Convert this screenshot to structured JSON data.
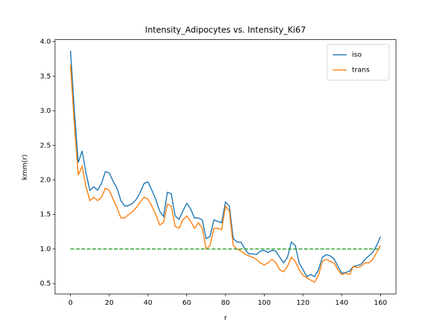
{
  "chart_data": {
    "type": "line",
    "title": "Intensity_Adipocytes vs. Intensity_Ki67",
    "x_label": "r",
    "y_label": "kmm(r)",
    "x": [
      0,
      2,
      4,
      6,
      8,
      10,
      12,
      14,
      16,
      18,
      20,
      22,
      24,
      26,
      28,
      30,
      32,
      34,
      36,
      38,
      40,
      42,
      44,
      46,
      48,
      50,
      52,
      54,
      56,
      58,
      60,
      62,
      64,
      66,
      68,
      70,
      72,
      74,
      76,
      78,
      80,
      82,
      84,
      86,
      88,
      90,
      92,
      94,
      96,
      98,
      100,
      102,
      104,
      106,
      108,
      110,
      112,
      114,
      116,
      118,
      120,
      122,
      124,
      126,
      128,
      130,
      132,
      134,
      136,
      138,
      140,
      142,
      144,
      146,
      148,
      150,
      152,
      154,
      156,
      158,
      160
    ],
    "series": [
      {
        "name": "iso",
        "color": "#1f77b4",
        "values": [
          3.87,
          3.0,
          2.25,
          2.42,
          2.1,
          1.85,
          1.9,
          1.85,
          1.95,
          2.12,
          2.1,
          1.98,
          1.88,
          1.7,
          1.62,
          1.63,
          1.66,
          1.72,
          1.82,
          1.95,
          1.97,
          1.85,
          1.72,
          1.55,
          1.47,
          1.82,
          1.8,
          1.48,
          1.43,
          1.55,
          1.66,
          1.58,
          1.45,
          1.45,
          1.42,
          1.15,
          1.18,
          1.42,
          1.4,
          1.38,
          1.68,
          1.62,
          1.15,
          1.1,
          1.1,
          1.0,
          0.93,
          0.93,
          0.92,
          0.97,
          0.98,
          0.95,
          0.98,
          0.97,
          0.88,
          0.8,
          0.88,
          1.1,
          1.05,
          0.8,
          0.7,
          0.6,
          0.63,
          0.6,
          0.7,
          0.88,
          0.92,
          0.9,
          0.86,
          0.75,
          0.65,
          0.66,
          0.68,
          0.75,
          0.76,
          0.78,
          0.85,
          0.9,
          0.95,
          1.05,
          1.18
        ]
      },
      {
        "name": "trans",
        "color": "#ff7f0e",
        "values": [
          3.67,
          2.8,
          2.07,
          2.2,
          1.9,
          1.7,
          1.75,
          1.7,
          1.75,
          1.88,
          1.85,
          1.72,
          1.6,
          1.45,
          1.45,
          1.5,
          1.54,
          1.6,
          1.68,
          1.75,
          1.72,
          1.62,
          1.5,
          1.35,
          1.38,
          1.65,
          1.62,
          1.33,
          1.3,
          1.42,
          1.48,
          1.4,
          1.3,
          1.38,
          1.3,
          1.0,
          1.05,
          1.3,
          1.3,
          1.28,
          1.62,
          1.55,
          1.05,
          1.0,
          0.97,
          0.93,
          0.9,
          0.88,
          0.85,
          0.8,
          0.77,
          0.8,
          0.85,
          0.8,
          0.7,
          0.67,
          0.75,
          0.88,
          0.82,
          0.7,
          0.62,
          0.58,
          0.55,
          0.52,
          0.62,
          0.82,
          0.85,
          0.82,
          0.8,
          0.7,
          0.63,
          0.65,
          0.63,
          0.75,
          0.73,
          0.75,
          0.8,
          0.8,
          0.85,
          0.95,
          1.05
        ]
      }
    ],
    "reference_line": {
      "x": [
        0,
        160
      ],
      "values": [
        1,
        1
      ],
      "color": "#2ca02c",
      "dashed": true
    },
    "xlim": [
      -8,
      168
    ],
    "ylim": [
      0.35,
      4.03
    ],
    "xticks": [
      0,
      20,
      40,
      60,
      80,
      100,
      120,
      140,
      160
    ],
    "yticks": [
      0.5,
      {
        "value": 1,
        "label": "1.0"
      },
      1.5,
      {
        "value": 2,
        "label": "2.0"
      },
      2.5,
      {
        "value": 3,
        "label": "3.0"
      },
      3.5,
      {
        "value": 4,
        "label": "4.0"
      }
    ],
    "legend": "upper right"
  }
}
